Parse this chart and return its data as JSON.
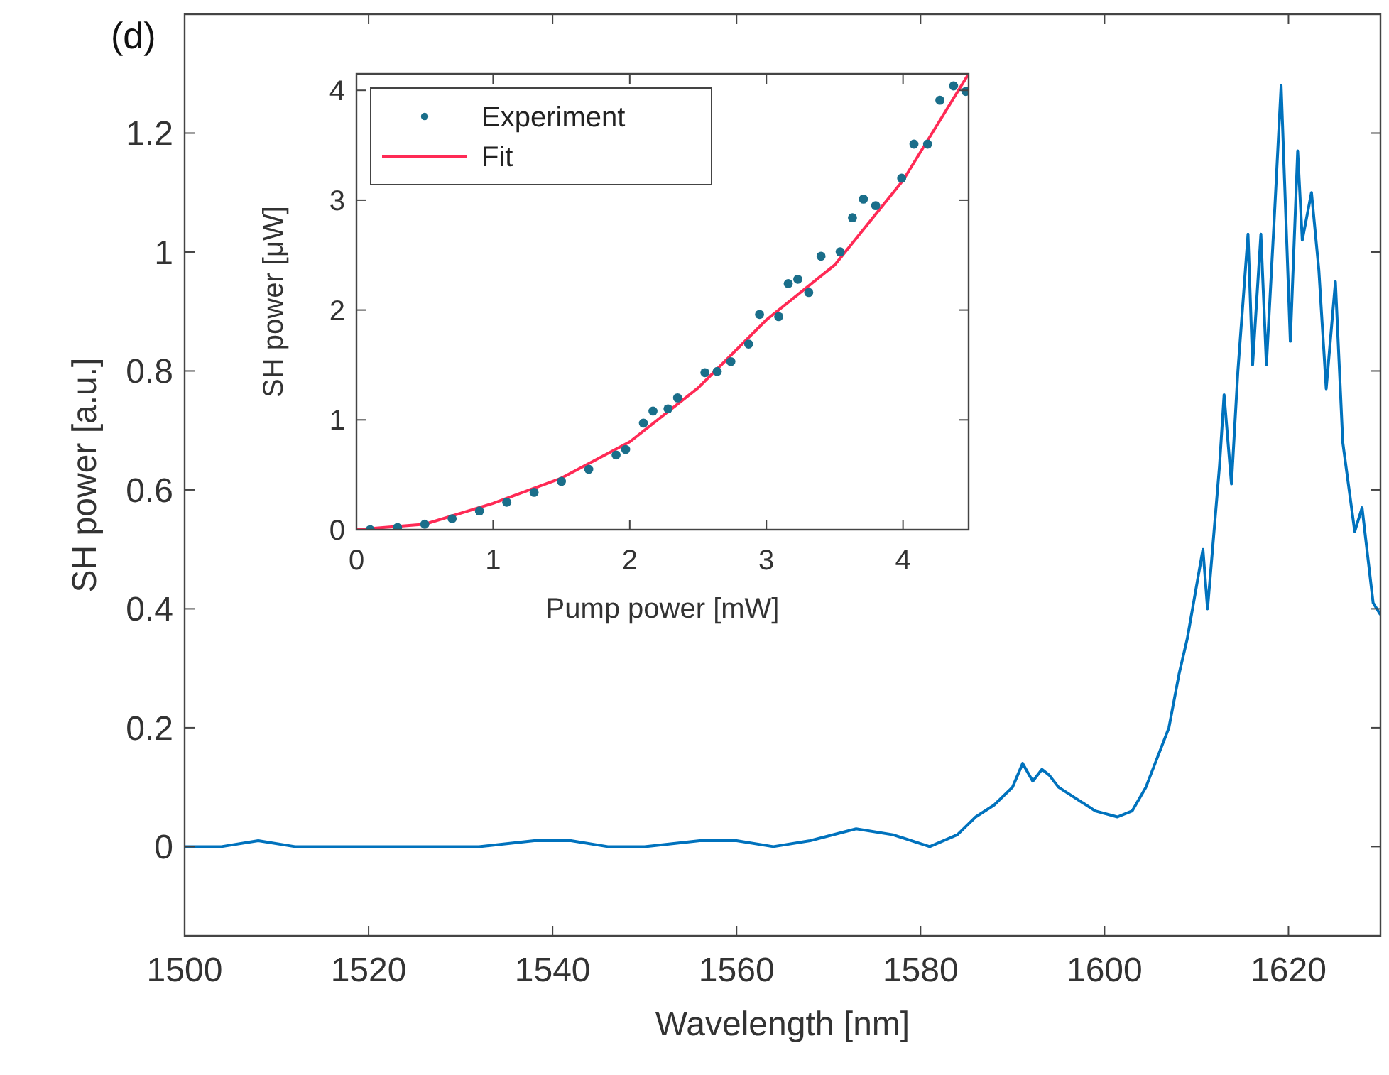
{
  "chart_data": [
    {
      "type": "line",
      "title": "(d)",
      "xlabel": "Wavelength [nm]",
      "ylabel": "SH power [a.u.]",
      "xlim": [
        1500,
        1630
      ],
      "ylim": [
        -0.15,
        1.4
      ],
      "xticks": [
        1500,
        1520,
        1540,
        1560,
        1580,
        1600,
        1620
      ],
      "yticks": [
        0,
        0.2,
        0.4,
        0.6,
        0.8,
        1,
        1.2
      ],
      "series": [
        {
          "color": "#0072bd",
          "x": [
            1500,
            1504,
            1508,
            1512,
            1516,
            1520,
            1524,
            1528,
            1532,
            1538,
            1542,
            1546,
            1550,
            1556,
            1560,
            1564,
            1568,
            1573,
            1577,
            1581,
            1584,
            1586,
            1588,
            1590,
            1591.1,
            1592.2,
            1593.2,
            1594,
            1595,
            1597,
            1599,
            1601.4,
            1603,
            1604.5,
            1605.5,
            1607,
            1608.1,
            1609,
            1610.7,
            1611.2,
            1612.5,
            1613,
            1613.8,
            1614.5,
            1615.6,
            1616.1,
            1617,
            1617.6,
            1618.5,
            1619.2,
            1620.2,
            1621,
            1621.5,
            1622.5,
            1623.3,
            1624.1,
            1625.1,
            1625.9,
            1627.2,
            1628,
            1629.2,
            1630
          ],
          "values": [
            0,
            0,
            0.01,
            0,
            0,
            0,
            0,
            0,
            0,
            0.01,
            0.01,
            0,
            0,
            0.01,
            0.01,
            0,
            0.01,
            0.03,
            0.02,
            0,
            0.02,
            0.05,
            0.07,
            0.1,
            0.14,
            0.11,
            0.13,
            0.12,
            0.1,
            0.08,
            0.06,
            0.05,
            0.06,
            0.1,
            0.14,
            0.2,
            0.29,
            0.35,
            0.5,
            0.4,
            0.64,
            0.76,
            0.61,
            0.8,
            1.03,
            0.81,
            1.03,
            0.81,
            1.07,
            1.28,
            0.85,
            1.17,
            1.02,
            1.1,
            0.97,
            0.77,
            0.95,
            0.68,
            0.53,
            0.57,
            0.41,
            0.39
          ]
        }
      ]
    },
    {
      "type": "scatter",
      "xlabel": "Pump power [mW]",
      "ylabel": "SH power [μW]",
      "xlim": [
        0,
        4.48
      ],
      "ylim": [
        0,
        4.15
      ],
      "xticks": [
        0,
        1,
        2,
        3,
        4
      ],
      "yticks": [
        0,
        1,
        2,
        3,
        4
      ],
      "legend": "top left",
      "series": [
        {
          "name": "Experiment",
          "marker": "circle",
          "color": "#1a6e8a",
          "x": [
            0.1,
            0.3,
            0.5,
            0.7,
            0.9,
            1.1,
            1.3,
            1.5,
            1.7,
            1.9,
            1.97,
            2.1,
            2.17,
            2.28,
            2.35,
            2.55,
            2.64,
            2.74,
            2.87,
            2.95,
            3.09,
            3.16,
            3.23,
            3.31,
            3.4,
            3.54,
            3.63,
            3.71,
            3.8,
            3.99,
            4.08,
            4.18,
            4.27,
            4.37,
            4.46
          ],
          "values": [
            0,
            0.02,
            0.05,
            0.1,
            0.17,
            0.25,
            0.34,
            0.44,
            0.55,
            0.68,
            0.73,
            0.97,
            1.08,
            1.1,
            1.2,
            1.43,
            1.44,
            1.53,
            1.69,
            1.96,
            1.94,
            2.24,
            2.28,
            2.16,
            2.49,
            2.53,
            2.84,
            3.01,
            2.95,
            3.2,
            3.51,
            3.51,
            3.91,
            4.04,
            3.99
          ]
        },
        {
          "name": "Fit",
          "type": "line",
          "color": "#ff2a55",
          "x": [
            0,
            0.5,
            1,
            1.5,
            2,
            2.5,
            3,
            3.5,
            4,
            4.48
          ],
          "values": [
            0,
            0.05,
            0.24,
            0.47,
            0.8,
            1.29,
            1.91,
            2.41,
            3.18,
            4.15
          ]
        }
      ]
    }
  ]
}
